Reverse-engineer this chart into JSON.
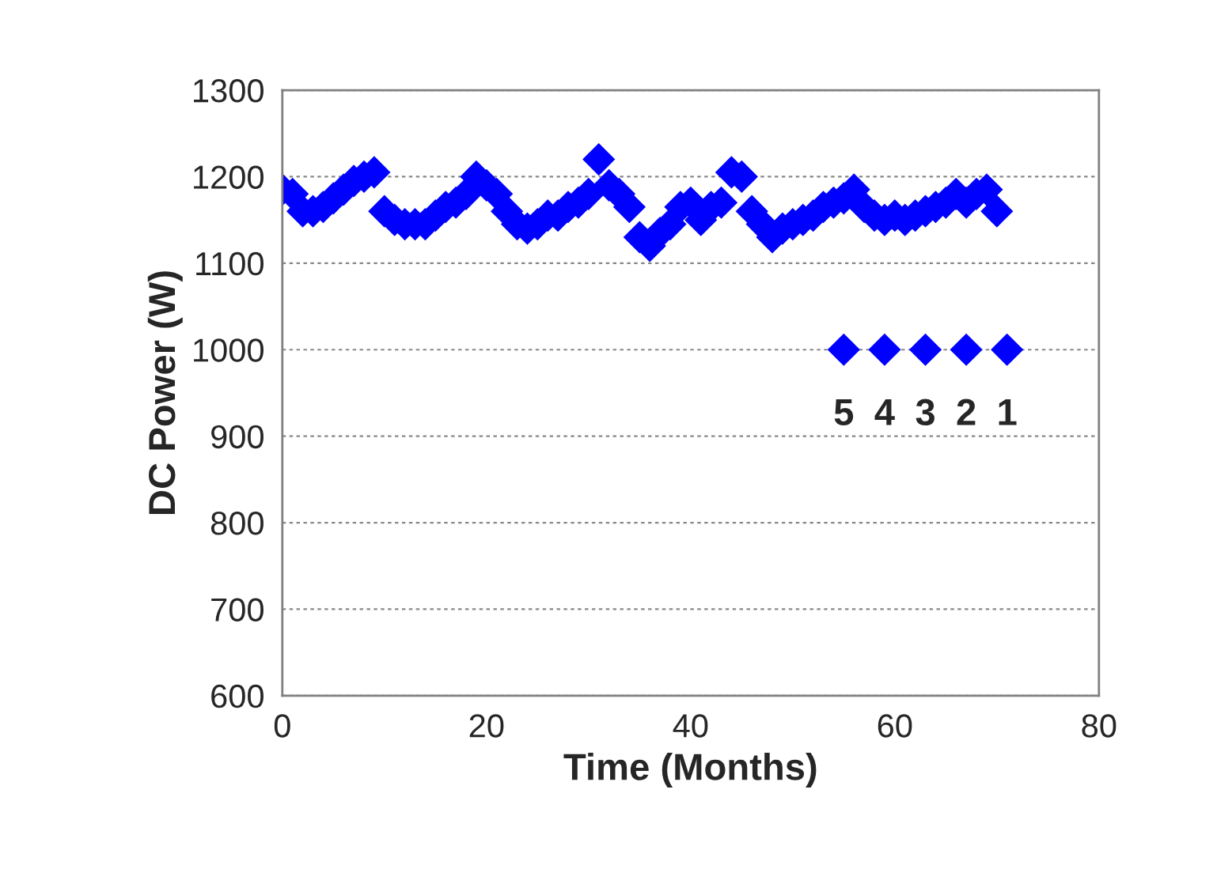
{
  "chart_data": {
    "type": "scatter",
    "xlabel": "Time (Months)",
    "ylabel": "DC Power (W)",
    "xlim": [
      0,
      80
    ],
    "xticks": [
      0,
      20,
      40,
      60,
      80
    ],
    "ylim": [
      600,
      1300
    ],
    "yticks": [
      600,
      700,
      800,
      900,
      1000,
      1100,
      1200,
      1300
    ],
    "grid": "y",
    "marker": "diamond",
    "legend": false,
    "series": [
      {
        "color": "#0000ff",
        "x": [
          0,
          1,
          2,
          3,
          4,
          5,
          6,
          7,
          8,
          9,
          10,
          11,
          12,
          13,
          14,
          15,
          16,
          17,
          18,
          19,
          20,
          21,
          22,
          23,
          24,
          25,
          26,
          27,
          28,
          29,
          30,
          31,
          32,
          33,
          34,
          35,
          36,
          37,
          38,
          39,
          40,
          41,
          42,
          43,
          44,
          45,
          46,
          47,
          48,
          49,
          50,
          51,
          52,
          53,
          54,
          55,
          56,
          57,
          58,
          59,
          60,
          61,
          62,
          63,
          64,
          65,
          66,
          67,
          68,
          69,
          70
        ],
        "values": [
          1185,
          1180,
          1160,
          1160,
          1165,
          1175,
          1185,
          1195,
          1200,
          1205,
          1160,
          1150,
          1145,
          1145,
          1145,
          1155,
          1165,
          1170,
          1180,
          1200,
          1190,
          1180,
          1160,
          1145,
          1140,
          1145,
          1155,
          1155,
          1165,
          1170,
          1180,
          1220,
          1190,
          1180,
          1165,
          1130,
          1120,
          1135,
          1145,
          1165,
          1170,
          1150,
          1165,
          1170,
          1205,
          1200,
          1160,
          1145,
          1130,
          1140,
          1145,
          1150,
          1155,
          1165,
          1170,
          1175,
          1185,
          1165,
          1155,
          1150,
          1155,
          1150,
          1155,
          1160,
          1165,
          1170,
          1180,
          1170,
          1180,
          1185,
          1160
        ]
      },
      {
        "color": "#0000ff",
        "x": [
          55,
          59,
          63,
          67,
          71
        ],
        "values": [
          1000,
          1000,
          1000,
          1000,
          1000
        ]
      }
    ],
    "annotations": [
      {
        "text": "5",
        "x": 55,
        "y": 1000
      },
      {
        "text": "4",
        "x": 59,
        "y": 1000
      },
      {
        "text": "3",
        "x": 63,
        "y": 1000
      },
      {
        "text": "2",
        "x": 67,
        "y": 1000
      },
      {
        "text": "1",
        "x": 71,
        "y": 1000
      }
    ]
  }
}
